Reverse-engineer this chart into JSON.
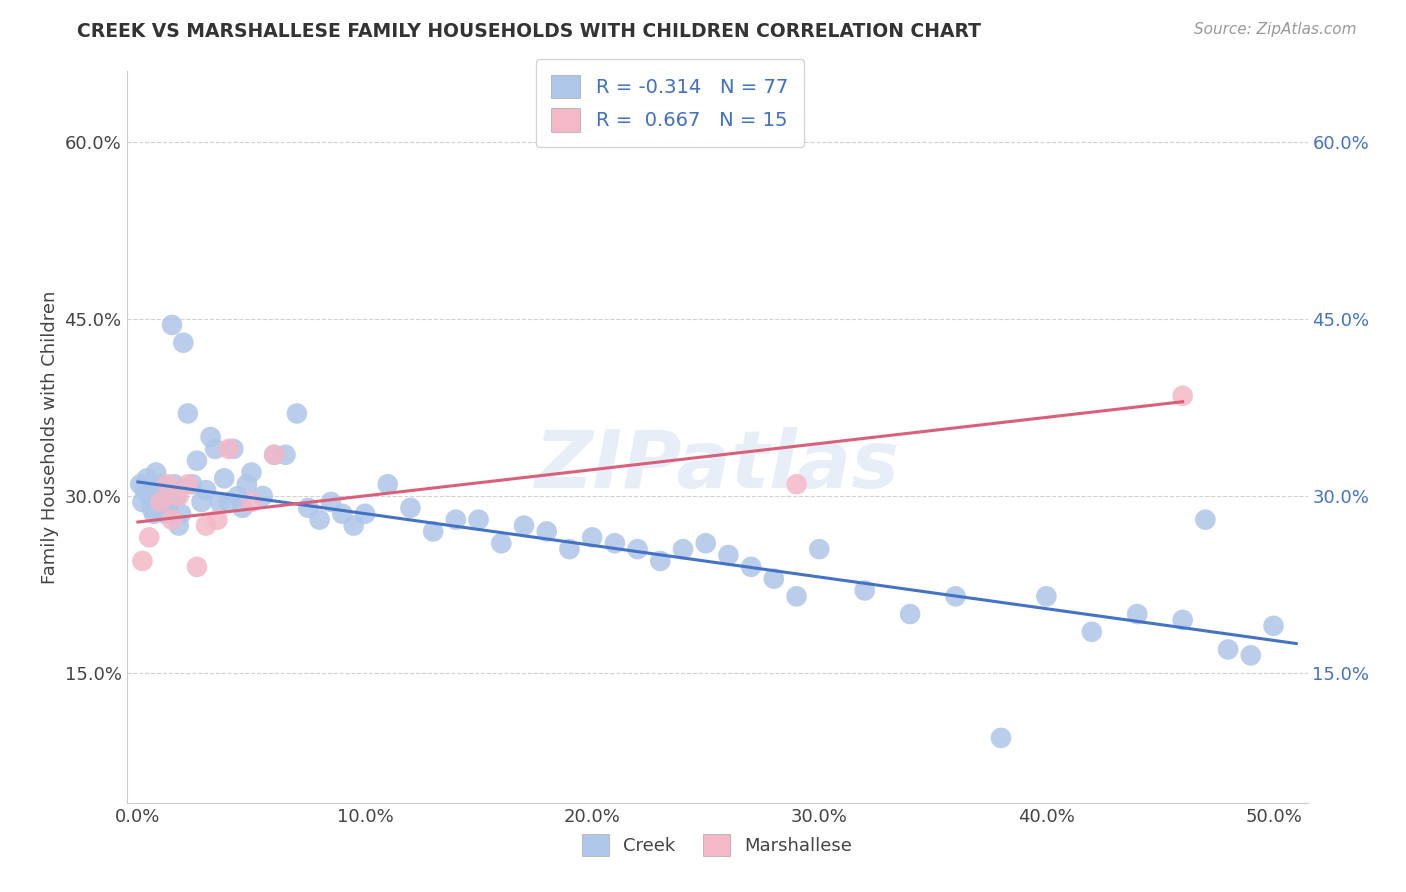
{
  "title": "CREEK VS MARSHALLESE FAMILY HOUSEHOLDS WITH CHILDREN CORRELATION CHART",
  "source": "Source: ZipAtlas.com",
  "ylabel": "Family Households with Children",
  "xlabel": "",
  "xlim": [
    -0.005,
    0.515
  ],
  "ylim": [
    0.04,
    0.66
  ],
  "xticks": [
    0.0,
    0.1,
    0.2,
    0.3,
    0.4,
    0.5
  ],
  "yticks": [
    0.15,
    0.3,
    0.45,
    0.6
  ],
  "xticklabels": [
    "0.0%",
    "10.0%",
    "20.0%",
    "30.0%",
    "40.0%",
    "50.0%"
  ],
  "yticklabels_left": [
    "15.0%",
    "30.0%",
    "45.0%",
    "60.0%"
  ],
  "yticklabels_right": [
    "15.0%",
    "30.0%",
    "45.0%",
    "60.0%"
  ],
  "creek_color": "#aec6e8",
  "marshallese_color": "#f4b8c8",
  "creek_line_color": "#4472c4",
  "marshallese_line_color": "#d9607a",
  "creek_R": -0.314,
  "creek_N": 77,
  "marshallese_R": 0.667,
  "marshallese_N": 15,
  "watermark": "ZIPatlas",
  "background_color": "#ffffff",
  "grid_color": "#cccccc",
  "creek_x": [
    0.001,
    0.002,
    0.003,
    0.004,
    0.005,
    0.006,
    0.007,
    0.008,
    0.009,
    0.01,
    0.011,
    0.012,
    0.013,
    0.014,
    0.015,
    0.016,
    0.017,
    0.018,
    0.019,
    0.02,
    0.022,
    0.024,
    0.026,
    0.028,
    0.03,
    0.032,
    0.034,
    0.036,
    0.038,
    0.04,
    0.042,
    0.044,
    0.046,
    0.048,
    0.05,
    0.055,
    0.06,
    0.065,
    0.07,
    0.075,
    0.08,
    0.085,
    0.09,
    0.095,
    0.1,
    0.11,
    0.12,
    0.13,
    0.14,
    0.15,
    0.16,
    0.17,
    0.18,
    0.19,
    0.2,
    0.21,
    0.22,
    0.23,
    0.24,
    0.25,
    0.26,
    0.27,
    0.28,
    0.29,
    0.3,
    0.32,
    0.34,
    0.36,
    0.38,
    0.4,
    0.42,
    0.44,
    0.46,
    0.47,
    0.48,
    0.49,
    0.5
  ],
  "creek_y": [
    0.31,
    0.295,
    0.305,
    0.315,
    0.3,
    0.29,
    0.285,
    0.32,
    0.295,
    0.31,
    0.305,
    0.285,
    0.29,
    0.295,
    0.445,
    0.31,
    0.3,
    0.275,
    0.285,
    0.43,
    0.37,
    0.31,
    0.33,
    0.295,
    0.305,
    0.35,
    0.34,
    0.295,
    0.315,
    0.295,
    0.34,
    0.3,
    0.29,
    0.31,
    0.32,
    0.3,
    0.335,
    0.335,
    0.37,
    0.29,
    0.28,
    0.295,
    0.285,
    0.275,
    0.285,
    0.31,
    0.29,
    0.27,
    0.28,
    0.28,
    0.26,
    0.275,
    0.27,
    0.255,
    0.265,
    0.26,
    0.255,
    0.245,
    0.255,
    0.26,
    0.25,
    0.24,
    0.23,
    0.215,
    0.255,
    0.22,
    0.2,
    0.215,
    0.095,
    0.215,
    0.185,
    0.2,
    0.195,
    0.28,
    0.17,
    0.165,
    0.19
  ],
  "marshallese_x": [
    0.002,
    0.005,
    0.01,
    0.013,
    0.015,
    0.018,
    0.022,
    0.026,
    0.03,
    0.035,
    0.04,
    0.05,
    0.06,
    0.29,
    0.46
  ],
  "marshallese_y": [
    0.245,
    0.265,
    0.295,
    0.31,
    0.28,
    0.3,
    0.31,
    0.24,
    0.275,
    0.28,
    0.34,
    0.295,
    0.335,
    0.31,
    0.385
  ],
  "creek_line_x": [
    0.0,
    0.51
  ],
  "creek_line_y": [
    0.312,
    0.175
  ],
  "marshallese_line_x": [
    0.0,
    0.46
  ],
  "marshallese_line_y": [
    0.278,
    0.38
  ]
}
